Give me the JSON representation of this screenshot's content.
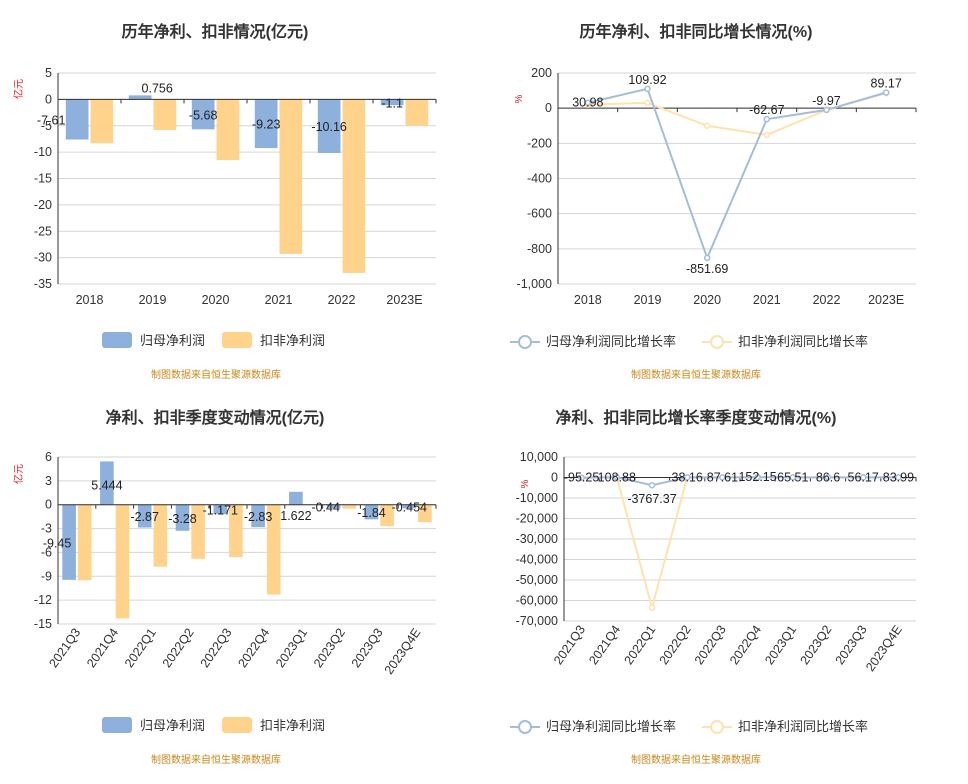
{
  "colors": {
    "blue": "#8eb0dc",
    "orange": "#ffd38c",
    "blue_line": "#a5bcdc",
    "orange_line": "#ffe2ad",
    "grid": "#d6d6d6",
    "axis": "#333333",
    "source": "#c98a1a",
    "unit": "#e02020"
  },
  "chart_data": [
    {
      "type": "bar",
      "title": "历年净利、扣非情况(亿元)",
      "ylabel": "亿元",
      "ylim": [
        -35,
        5
      ],
      "yticks": [
        5,
        0,
        -5,
        -10,
        -15,
        -20,
        -25,
        -30,
        -35
      ],
      "categories": [
        "2018",
        "2019",
        "2020",
        "2021",
        "2022",
        "2023E"
      ],
      "series": [
        {
          "name": "归母净利润",
          "values": [
            -7.61,
            0.756,
            -5.68,
            -9.23,
            -10.16,
            -1.1
          ]
        },
        {
          "name": "扣非净利润",
          "values": [
            -8.3,
            -5.8,
            -11.5,
            -29.3,
            -32.9,
            -5.0
          ]
        }
      ],
      "data_labels": [
        "-7.61",
        "0.756",
        "-5.68",
        "-9.23",
        "-10.16",
        "-1.1"
      ],
      "legend": [
        "归母净利润",
        "扣非净利润"
      ],
      "source": "制图数据来自恒生聚源数据库"
    },
    {
      "type": "line",
      "title": "历年净利、扣非同比增长情况(%)",
      "ylabel": "%",
      "ylim": [
        -1000,
        200
      ],
      "yticks": [
        "200",
        "0",
        "-200",
        "-400",
        "-600",
        "-800",
        "-1,000"
      ],
      "categories": [
        "2018",
        "2019",
        "2020",
        "2021",
        "2022",
        "2023E"
      ],
      "series": [
        {
          "name": "归母净利润同比增长率",
          "values": [
            30.98,
            109.92,
            -851.69,
            -62.67,
            -9.97,
            89.17
          ]
        },
        {
          "name": "扣非净利润同比增长率",
          "values": [
            20,
            30,
            -100,
            -152,
            -10,
            85
          ]
        }
      ],
      "data_labels": [
        "30.98",
        "109.92",
        "-851.69",
        "-62.67",
        "-9.97",
        "89.17"
      ],
      "legend": [
        "归母净利润同比增长率",
        "扣非净利润同比增长率"
      ],
      "source": "制图数据来自恒生聚源数据库"
    },
    {
      "type": "bar",
      "title": "净利、扣非季度变动情况(亿元)",
      "ylabel": "亿元",
      "ylim": [
        -15,
        6
      ],
      "yticks": [
        6,
        3,
        0,
        -3,
        -6,
        -9,
        -12,
        -15
      ],
      "categories": [
        "2021Q3",
        "2021Q4",
        "2022Q1",
        "2022Q2",
        "2022Q3",
        "2022Q4",
        "2023Q1",
        "2023Q2",
        "2023Q3",
        "2023Q4E"
      ],
      "series": [
        {
          "name": "归母净利润",
          "values": [
            -9.45,
            5.444,
            -2.87,
            -3.28,
            -1.171,
            -2.83,
            1.622,
            -0.44,
            -1.84,
            -0.454
          ]
        },
        {
          "name": "扣非净利润",
          "values": [
            -9.5,
            -14.3,
            -7.8,
            -6.8,
            -6.6,
            -11.3,
            0.0,
            -0.5,
            -2.7,
            -2.2
          ]
        }
      ],
      "data_labels": [
        "-9.45",
        "5.444",
        "-2.87",
        "-3.28",
        "-1.171",
        "-2.83",
        "1.622",
        "-0.44",
        "-1.84",
        "-0.454"
      ],
      "legend": [
        "归母净利润",
        "扣非净利润"
      ],
      "source": "制图数据来自恒生聚源数据库"
    },
    {
      "type": "line",
      "title": "净利、扣非同比增长率季度变动情况(%)",
      "ylabel": "%",
      "ylim": [
        -70000,
        10000
      ],
      "yticks": [
        "10,000",
        "0",
        "-10,000",
        "-20,000",
        "-30,000",
        "-40,000",
        "-50,000",
        "-60,000",
        "-70,000"
      ],
      "categories": [
        "2021Q3",
        "2021Q4",
        "2022Q1",
        "2022Q2",
        "2022Q3",
        "2022Q4",
        "2023Q1",
        "2023Q2",
        "2023Q3",
        "2023Q4E"
      ],
      "series": [
        {
          "name": "归母净利润同比增长率",
          "values": [
            -95.25,
            108.88,
            -3767.37,
            38.16,
            87.61,
            152.15,
            65.51,
            86.6,
            56.17,
            83.99
          ]
        },
        {
          "name": "扣非净利润同比增长率",
          "values": [
            -90,
            100,
            -63500,
            20,
            60,
            110,
            50,
            70,
            40,
            60
          ]
        }
      ],
      "data_labels": [
        "-95.25",
        "108.88",
        "-3767.37",
        "38.16",
        "87.61",
        "152.15",
        "65.51",
        "86.6",
        "56.17",
        "83.99"
      ],
      "legend": [
        "归母净利润同比增长率",
        "扣非净利润同比增长率"
      ],
      "source": "制图数据来自恒生聚源数据库"
    }
  ]
}
